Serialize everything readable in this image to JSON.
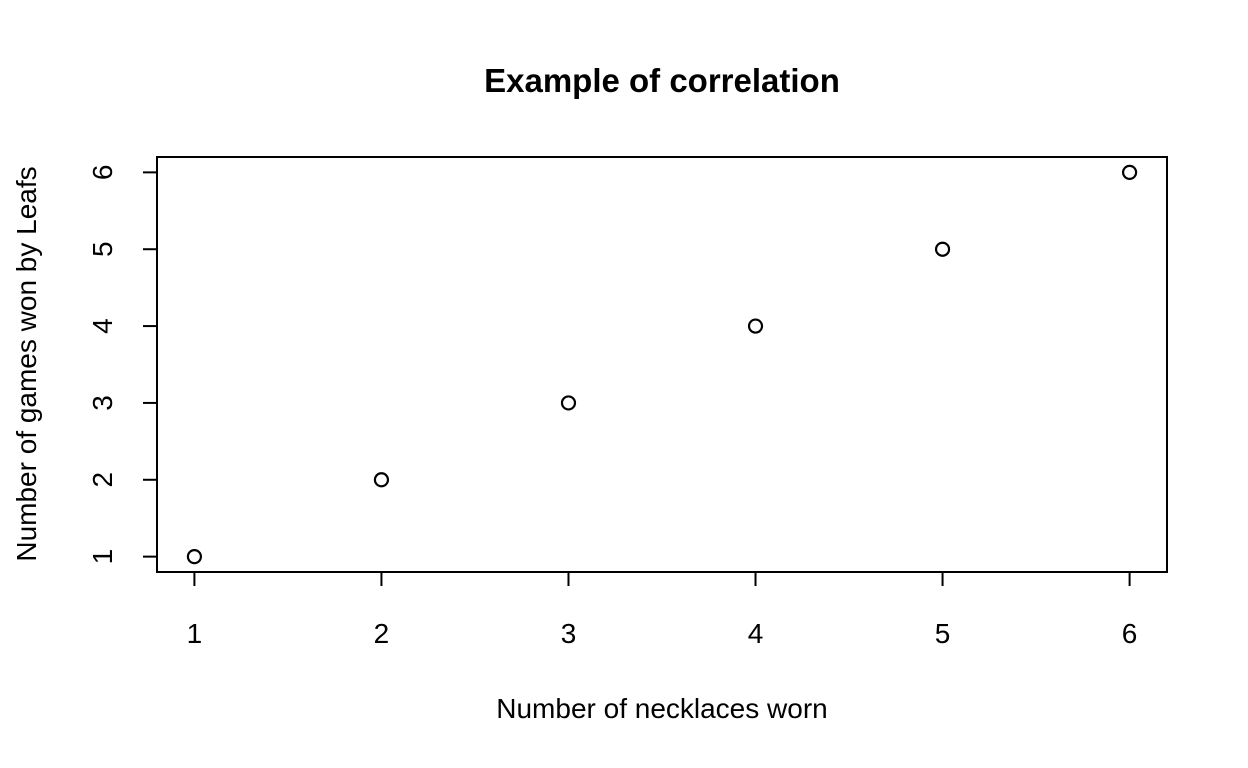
{
  "chart_data": {
    "type": "scatter",
    "title": "Example of correlation",
    "xlabel": "Number of necklaces worn",
    "ylabel": "Number of games won by Leafs",
    "xlim": [
      0.8,
      6.2
    ],
    "ylim": [
      0.8,
      6.2
    ],
    "x_ticks": [
      "1",
      "2",
      "3",
      "4",
      "5",
      "6"
    ],
    "y_ticks": [
      "1",
      "2",
      "3",
      "4",
      "5",
      "6"
    ],
    "grid": false,
    "marker": "open-circle",
    "point_color": "#000000",
    "x": [
      1,
      2,
      3,
      4,
      5,
      6
    ],
    "y": [
      1,
      2,
      3,
      4,
      5,
      6
    ]
  }
}
